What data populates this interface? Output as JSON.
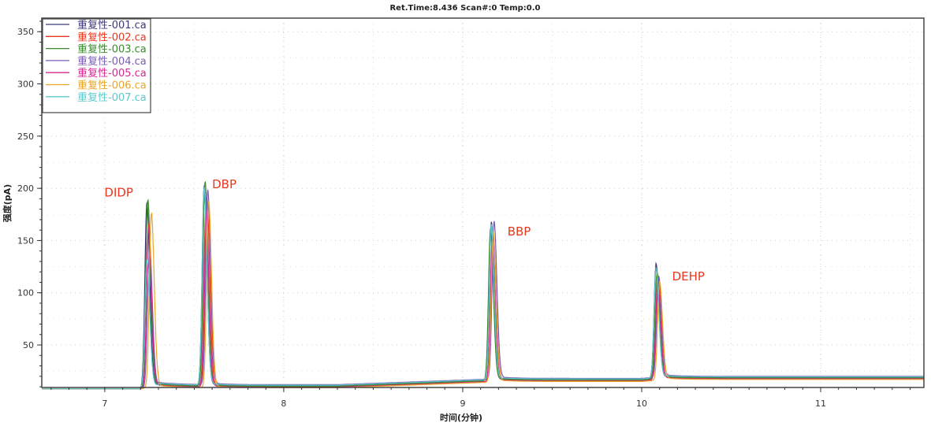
{
  "chart_data": {
    "type": "line",
    "title": "Ret.Time:8.436 Scan#:0 Temp:0.0",
    "xlabel": "时间(分钟)",
    "ylabel": "强度(pA)",
    "xlim": [
      6.648,
      11.577
    ],
    "ylim": [
      9.3,
      363
    ],
    "xticks": [
      7,
      8,
      9,
      10,
      11
    ],
    "yticks": [
      50,
      100,
      150,
      200,
      250,
      300,
      350
    ],
    "grid": true,
    "legend": "top-left",
    "annotations": [
      {
        "text": "DIDP",
        "x": 7.24,
        "y": 192
      },
      {
        "text": "DBP",
        "x": 7.6,
        "y": 200
      },
      {
        "text": "BBP",
        "x": 9.25,
        "y": 155
      },
      {
        "text": "DEHP",
        "x": 10.17,
        "y": 112
      }
    ],
    "annotation_color": "#e8371e",
    "baseline": [
      [
        6.648,
        8
      ],
      [
        7.2,
        8
      ],
      [
        7.3,
        11
      ],
      [
        7.55,
        10
      ],
      [
        7.7,
        10
      ],
      [
        8.3,
        10
      ],
      [
        9.1,
        15
      ],
      [
        9.25,
        16
      ],
      [
        10.0,
        16
      ],
      [
        10.15,
        18
      ],
      [
        11.577,
        18
      ]
    ],
    "series": [
      {
        "name": "重复性-001.ca",
        "color": "#3c3a78",
        "peaks": [
          [
            7.235,
            185
          ],
          [
            7.555,
            200
          ],
          [
            9.16,
            165
          ],
          [
            10.08,
            125
          ]
        ],
        "offset": 1
      },
      {
        "name": "重复性-002.ca",
        "color": "#e8371e",
        "peaks": [
          [
            7.245,
            165
          ],
          [
            7.57,
            190
          ],
          [
            9.17,
            155
          ],
          [
            10.09,
            115
          ]
        ],
        "offset": 0
      },
      {
        "name": "重复性-003.ca",
        "color": "#3a8a2e",
        "peaks": [
          [
            7.24,
            188
          ],
          [
            7.56,
            205
          ],
          [
            9.155,
            160
          ],
          [
            10.085,
            118
          ]
        ],
        "offset": 0.5
      },
      {
        "name": "重复性-004.ca",
        "color": "#7a5bb5",
        "peaks": [
          [
            7.25,
            140
          ],
          [
            7.575,
            195
          ],
          [
            9.175,
            165
          ],
          [
            10.095,
            112
          ]
        ],
        "offset": 2
      },
      {
        "name": "重复性-005.ca",
        "color": "#d6288f",
        "peaks": [
          [
            7.245,
            160
          ],
          [
            7.565,
            180
          ],
          [
            9.165,
            150
          ],
          [
            10.09,
            108
          ]
        ],
        "offset": -0.5
      },
      {
        "name": "重复性-006.ca",
        "color": "#e8a52a",
        "peaks": [
          [
            7.26,
            175
          ],
          [
            7.58,
            188
          ],
          [
            9.17,
            158
          ],
          [
            10.1,
            110
          ]
        ],
        "offset": -1
      },
      {
        "name": "重复性-007.ca",
        "color": "#5ec8cc",
        "peaks": [
          [
            7.235,
            130
          ],
          [
            7.555,
            198
          ],
          [
            9.16,
            162
          ],
          [
            10.08,
            120
          ]
        ],
        "offset": 1.5
      }
    ]
  }
}
